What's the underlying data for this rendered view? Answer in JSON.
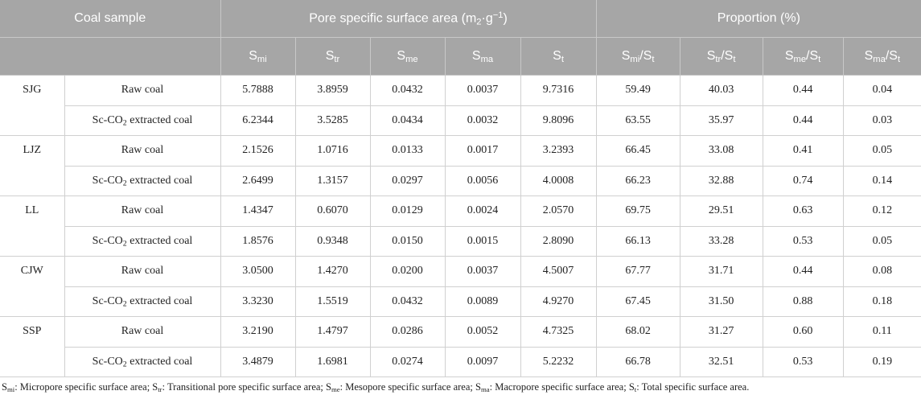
{
  "table": {
    "header": {
      "coal_sample": [
        {
          "text": "Coal sample"
        }
      ],
      "surface_area": [
        {
          "text": "Pore specific surface area (m"
        },
        {
          "sub": "2"
        },
        {
          "text": "·g"
        },
        {
          "sup": "−1"
        },
        {
          "text": ")"
        }
      ],
      "proportion": [
        {
          "text": "Proportion (%)"
        }
      ],
      "columns": [
        [
          {
            "text": "S"
          },
          {
            "sub": "mi"
          }
        ],
        [
          {
            "text": "S"
          },
          {
            "sub": "tr"
          }
        ],
        [
          {
            "text": "S"
          },
          {
            "sub": "me"
          }
        ],
        [
          {
            "text": "S"
          },
          {
            "sub": "ma"
          }
        ],
        [
          {
            "text": "S"
          },
          {
            "sub": "t"
          }
        ],
        [
          {
            "text": "S"
          },
          {
            "sub": "mi"
          },
          {
            "text": "/S"
          },
          {
            "sub": "t"
          }
        ],
        [
          {
            "text": "S"
          },
          {
            "sub": "tr"
          },
          {
            "text": "/S"
          },
          {
            "sub": "t"
          }
        ],
        [
          {
            "text": "S"
          },
          {
            "sub": "me"
          },
          {
            "text": "/S"
          },
          {
            "sub": "t"
          }
        ],
        [
          {
            "text": "S"
          },
          {
            "sub": "ma"
          },
          {
            "text": "/S"
          },
          {
            "sub": "t"
          }
        ]
      ]
    },
    "groups": [
      {
        "name": "SJG",
        "rows": [
          {
            "label": [
              {
                "text": "Raw coal"
              }
            ],
            "values": [
              "5.7888",
              "3.8959",
              "0.0432",
              "0.0037",
              "9.7316",
              "59.49",
              "40.03",
              "0.44",
              "0.04"
            ]
          },
          {
            "label": [
              {
                "text": "Sc-CO"
              },
              {
                "sub": "2"
              },
              {
                "text": " extracted coal"
              }
            ],
            "values": [
              "6.2344",
              "3.5285",
              "0.0434",
              "0.0032",
              "9.8096",
              "63.55",
              "35.97",
              "0.44",
              "0.03"
            ]
          }
        ]
      },
      {
        "name": "LJZ",
        "rows": [
          {
            "label": [
              {
                "text": "Raw coal"
              }
            ],
            "values": [
              "2.1526",
              "1.0716",
              "0.0133",
              "0.0017",
              "3.2393",
              "66.45",
              "33.08",
              "0.41",
              "0.05"
            ]
          },
          {
            "label": [
              {
                "text": "Sc-CO"
              },
              {
                "sub": "2"
              },
              {
                "text": " extracted coal"
              }
            ],
            "values": [
              "2.6499",
              "1.3157",
              "0.0297",
              "0.0056",
              "4.0008",
              "66.23",
              "32.88",
              "0.74",
              "0.14"
            ]
          }
        ]
      },
      {
        "name": "LL",
        "rows": [
          {
            "label": [
              {
                "text": "Raw coal"
              }
            ],
            "values": [
              "1.4347",
              "0.6070",
              "0.0129",
              "0.0024",
              "2.0570",
              "69.75",
              "29.51",
              "0.63",
              "0.12"
            ]
          },
          {
            "label": [
              {
                "text": "Sc-CO"
              },
              {
                "sub": "2"
              },
              {
                "text": " extracted coal"
              }
            ],
            "values": [
              "1.8576",
              "0.9348",
              "0.0150",
              "0.0015",
              "2.8090",
              "66.13",
              "33.28",
              "0.53",
              "0.05"
            ]
          }
        ]
      },
      {
        "name": "CJW",
        "rows": [
          {
            "label": [
              {
                "text": "Raw coal"
              }
            ],
            "values": [
              "3.0500",
              "1.4270",
              "0.0200",
              "0.0037",
              "4.5007",
              "67.77",
              "31.71",
              "0.44",
              "0.08"
            ]
          },
          {
            "label": [
              {
                "text": "Sc-CO"
              },
              {
                "sub": "2"
              },
              {
                "text": " extracted coal"
              }
            ],
            "values": [
              "3.3230",
              "1.5519",
              "0.0432",
              "0.0089",
              "4.9270",
              "67.45",
              "31.50",
              "0.88",
              "0.18"
            ]
          }
        ]
      },
      {
        "name": "SSP",
        "rows": [
          {
            "label": [
              {
                "text": "Raw coal"
              }
            ],
            "values": [
              "3.2190",
              "1.4797",
              "0.0286",
              "0.0052",
              "4.7325",
              "68.02",
              "31.27",
              "0.60",
              "0.11"
            ]
          },
          {
            "label": [
              {
                "text": "Sc-CO"
              },
              {
                "sub": "2"
              },
              {
                "text": " extracted coal"
              }
            ],
            "values": [
              "3.4879",
              "1.6981",
              "0.0274",
              "0.0097",
              "5.2232",
              "66.78",
              "32.51",
              "0.53",
              "0.19"
            ]
          }
        ]
      }
    ]
  },
  "footnote": [
    {
      "text": "S"
    },
    {
      "sub": "mi"
    },
    {
      "text": ": Micropore specific surface area; S"
    },
    {
      "sub": "tr"
    },
    {
      "text": ": Transitional pore specific surface area; S"
    },
    {
      "sub": "me"
    },
    {
      "text": ": Mesopore specific surface area; S"
    },
    {
      "sub": "ma"
    },
    {
      "text": ": Macropore specific surface area; S"
    },
    {
      "sub": "t"
    },
    {
      "text": ": Total specific surface area."
    }
  ]
}
